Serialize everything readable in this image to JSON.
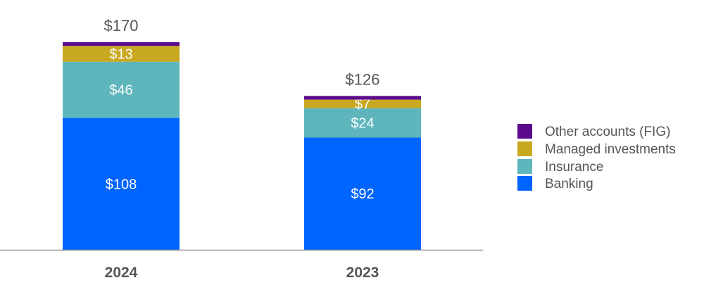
{
  "chart_data": {
    "type": "bar",
    "stacked": true,
    "categories": [
      "2024",
      "2023"
    ],
    "totals": [
      "$170",
      "$126"
    ],
    "total_values": [
      170,
      126
    ],
    "series": [
      {
        "name": "Banking",
        "color": "#0064FF",
        "values": [
          108,
          92
        ],
        "labels": [
          "$108",
          "$92"
        ]
      },
      {
        "name": "Insurance",
        "color": "#5EB5BC",
        "values": [
          46,
          24
        ],
        "labels": [
          "$46",
          "$24"
        ]
      },
      {
        "name": "Managed investments",
        "color": "#C8A820",
        "values": [
          13,
          7
        ],
        "labels": [
          "$13",
          "$7"
        ]
      },
      {
        "name": "Other accounts (FIG)",
        "color": "#5C0A8C",
        "values": [
          3,
          3
        ],
        "labels": [
          "",
          ""
        ]
      }
    ],
    "ylim": [
      0,
      170
    ],
    "grid": false,
    "legend_placement": "right"
  }
}
